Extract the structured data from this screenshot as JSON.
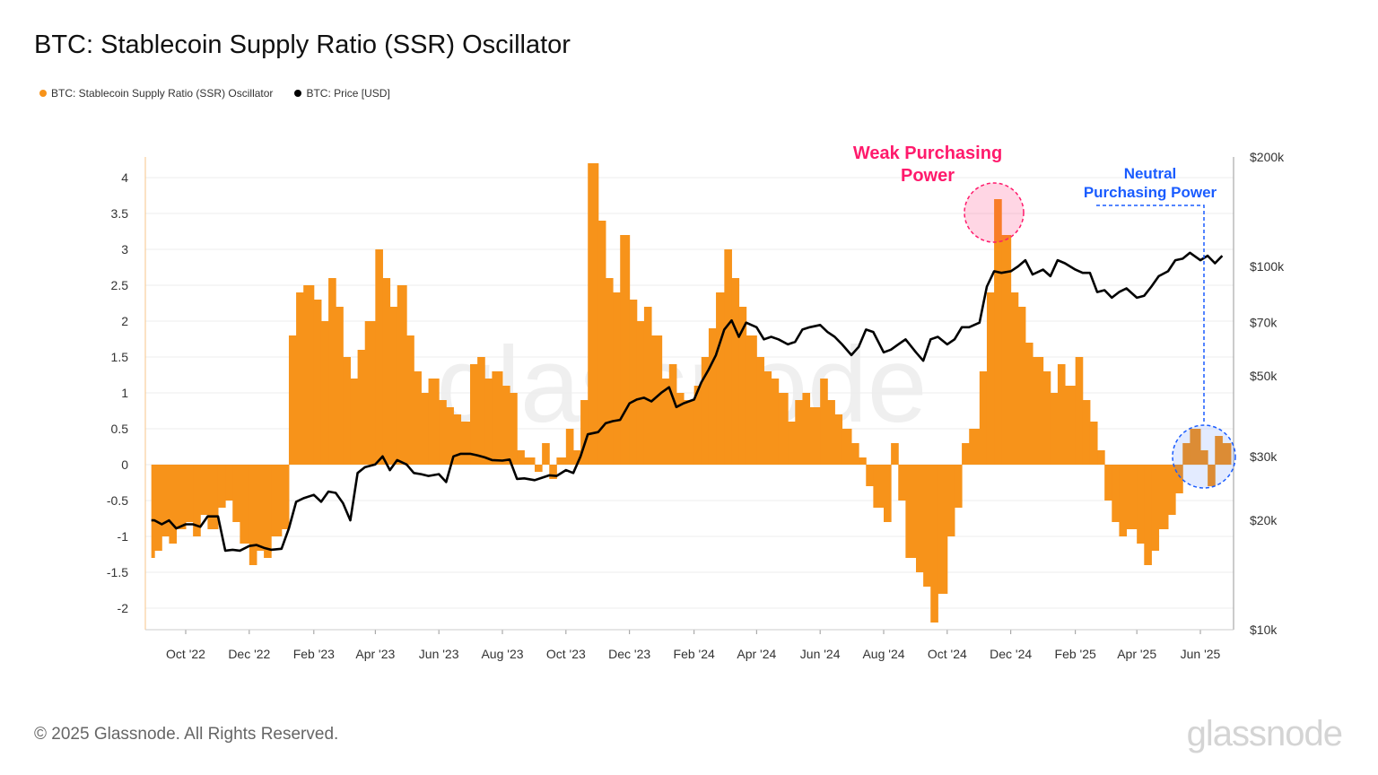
{
  "title": "BTC: Stablecoin Supply Ratio (SSR) Oscillator",
  "footer": "© 2025 Glassnode. All Rights Reserved.",
  "logo": "glassnode",
  "chart_data": {
    "type": "bar",
    "title": "BTC: Stablecoin Supply Ratio (SSR) Oscillator",
    "legend_position": "top-left",
    "grid": true,
    "colors": {
      "oscillator": "#f7931a",
      "price": "#000000",
      "weak": "#ff1a6c",
      "neutral": "#1a5cff"
    },
    "x_ticks": [
      "Oct '22",
      "Dec '22",
      "Feb '23",
      "Apr '23",
      "Jun '23",
      "Aug '23",
      "Oct '23",
      "Dec '23",
      "Feb '24",
      "Apr '24",
      "Jun '24",
      "Aug '24",
      "Oct '24",
      "Dec '24",
      "Feb '25",
      "Apr '25",
      "Jun '25"
    ],
    "y_left": {
      "ticks": [
        "4",
        "3.5",
        "3",
        "2.5",
        "2",
        "1.5",
        "1",
        "0.5",
        "0",
        "-0.5",
        "-1",
        "-1.5",
        "-2"
      ],
      "range": [
        -2.3,
        4.3
      ]
    },
    "y_right": {
      "scale": "log",
      "ticks": [
        "$200k",
        "$100k",
        "$70k",
        "$50k",
        "$30k",
        "$20k",
        "$10k"
      ],
      "range": [
        10000,
        200000
      ]
    },
    "annotations": [
      {
        "text_lines": [
          "Weak Purchasing",
          "Power"
        ],
        "date": "2024-11-13",
        "type": "circle"
      },
      {
        "text_lines": [
          "Neutral",
          "Purchasing Power"
        ],
        "date": "2025-06-01",
        "type": "circle"
      }
    ],
    "series": [
      {
        "name": "BTC: Stablecoin Supply Ratio (SSR) Oscillator",
        "type": "bar",
        "axis": "left"
      },
      {
        "name": "BTC: Price [USD]",
        "type": "line",
        "axis": "right"
      }
    ],
    "dates": [
      "2022-08-29",
      "2022-09-01",
      "2022-09-08",
      "2022-09-15",
      "2022-09-22",
      "2022-10-01",
      "2022-10-08",
      "2022-10-15",
      "2022-10-22",
      "2022-11-01",
      "2022-11-08",
      "2022-11-15",
      "2022-11-22",
      "2022-12-01",
      "2022-12-08",
      "2022-12-15",
      "2022-12-22",
      "2023-01-01",
      "2023-01-08",
      "2023-01-15",
      "2023-01-22",
      "2023-02-01",
      "2023-02-08",
      "2023-02-15",
      "2023-02-22",
      "2023-03-01",
      "2023-03-08",
      "2023-03-15",
      "2023-03-22",
      "2023-04-01",
      "2023-04-08",
      "2023-04-15",
      "2023-04-22",
      "2023-05-01",
      "2023-05-08",
      "2023-05-15",
      "2023-05-22",
      "2023-06-01",
      "2023-06-08",
      "2023-06-15",
      "2023-06-22",
      "2023-07-01",
      "2023-07-08",
      "2023-07-15",
      "2023-07-22",
      "2023-08-01",
      "2023-08-08",
      "2023-08-15",
      "2023-08-22",
      "2023-09-01",
      "2023-09-08",
      "2023-09-15",
      "2023-09-22",
      "2023-10-01",
      "2023-10-08",
      "2023-10-15",
      "2023-10-22",
      "2023-11-01",
      "2023-11-08",
      "2023-11-15",
      "2023-11-22",
      "2023-12-01",
      "2023-12-08",
      "2023-12-15",
      "2023-12-22",
      "2024-01-01",
      "2024-01-08",
      "2024-01-15",
      "2024-01-22",
      "2024-02-01",
      "2024-02-08",
      "2024-02-15",
      "2024-02-22",
      "2024-03-01",
      "2024-03-08",
      "2024-03-15",
      "2024-03-22",
      "2024-04-01",
      "2024-04-08",
      "2024-04-15",
      "2024-04-22",
      "2024-05-01",
      "2024-05-08",
      "2024-05-15",
      "2024-05-22",
      "2024-06-01",
      "2024-06-08",
      "2024-06-15",
      "2024-06-22",
      "2024-07-01",
      "2024-07-08",
      "2024-07-15",
      "2024-07-22",
      "2024-08-01",
      "2024-08-08",
      "2024-08-15",
      "2024-08-22",
      "2024-09-01",
      "2024-09-08",
      "2024-09-15",
      "2024-09-22",
      "2024-10-01",
      "2024-10-08",
      "2024-10-15",
      "2024-10-22",
      "2024-11-01",
      "2024-11-08",
      "2024-11-15",
      "2024-11-22",
      "2024-12-01",
      "2024-12-08",
      "2024-12-15",
      "2024-12-22",
      "2025-01-01",
      "2025-01-08",
      "2025-01-15",
      "2025-01-22",
      "2025-02-01",
      "2025-02-08",
      "2025-02-15",
      "2025-02-22",
      "2025-03-01",
      "2025-03-08",
      "2025-03-15",
      "2025-03-22",
      "2025-04-01",
      "2025-04-08",
      "2025-04-15",
      "2025-04-22",
      "2025-05-01",
      "2025-05-08",
      "2025-05-15",
      "2025-05-22",
      "2025-06-01",
      "2025-06-08",
      "2025-06-15",
      "2025-06-22"
    ],
    "oscillator": [
      -1.3,
      -1.2,
      -1.0,
      -1.1,
      -0.9,
      -0.8,
      -1.0,
      -0.7,
      -0.9,
      -0.6,
      -0.5,
      -0.8,
      -1.1,
      -1.4,
      -1.2,
      -1.3,
      -1.0,
      -0.9,
      1.8,
      2.4,
      2.5,
      2.3,
      2.0,
      2.6,
      2.2,
      1.5,
      1.2,
      1.6,
      2.0,
      3.0,
      2.6,
      2.2,
      2.5,
      1.8,
      1.3,
      1.0,
      1.2,
      0.9,
      0.8,
      0.7,
      0.6,
      1.4,
      1.5,
      1.2,
      1.3,
      1.1,
      1.0,
      0.2,
      0.1,
      -0.1,
      0.3,
      -0.2,
      0.1,
      0.5,
      0.2,
      0.9,
      4.2,
      3.4,
      2.6,
      2.4,
      3.2,
      2.3,
      2.0,
      2.2,
      1.8,
      1.2,
      1.4,
      1.0,
      0.9,
      1.1,
      1.5,
      1.9,
      2.4,
      3.0,
      2.6,
      2.2,
      1.8,
      1.5,
      1.3,
      1.2,
      1.0,
      0.6,
      0.9,
      1.0,
      0.8,
      1.2,
      0.9,
      0.7,
      0.5,
      0.3,
      0.1,
      -0.3,
      -0.6,
      -0.8,
      0.3,
      -0.5,
      -1.3,
      -1.5,
      -1.7,
      -2.2,
      -1.8,
      -1.0,
      -0.6,
      0.3,
      0.5,
      1.3,
      2.4,
      3.7,
      3.2,
      2.4,
      2.2,
      1.7,
      1.5,
      1.3,
      1.0,
      1.4,
      1.1,
      1.5,
      0.9,
      0.6,
      0.2,
      -0.5,
      -0.8,
      -1.0,
      -0.9,
      -1.1,
      -1.4,
      -1.2,
      -0.9,
      -0.7,
      -0.4,
      0.3,
      0.5,
      0.2,
      -0.3,
      0.4,
      0.3
    ],
    "price": [
      20000,
      20000,
      19500,
      20000,
      19000,
      19500,
      19500,
      19200,
      20500,
      20500,
      16500,
      16600,
      16500,
      17000,
      17100,
      16800,
      16600,
      16700,
      19000,
      22500,
      23000,
      23500,
      22500,
      24000,
      23800,
      22300,
      20000,
      27000,
      28000,
      28500,
      30000,
      27500,
      29300,
      28500,
      27000,
      26800,
      26500,
      26800,
      25500,
      30000,
      30500,
      30500,
      30200,
      29800,
      29300,
      29200,
      29400,
      26000,
      26100,
      25800,
      26200,
      26600,
      26500,
      27500,
      27000,
      30000,
      34500,
      35000,
      37000,
      37500,
      37800,
      42000,
      43000,
      43500,
      42500,
      45000,
      46500,
      41000,
      42000,
      43000,
      48000,
      52000,
      57000,
      67000,
      71000,
      64000,
      70000,
      68000,
      63000,
      64000,
      63000,
      61000,
      62000,
      67000,
      68000,
      69000,
      66000,
      64000,
      61000,
      57000,
      60000,
      67000,
      66000,
      58000,
      59000,
      61000,
      63000,
      58000,
      55000,
      63000,
      64000,
      61000,
      63000,
      68000,
      68000,
      70000,
      88000,
      97000,
      96000,
      97000,
      100000,
      104000,
      95000,
      98000,
      94000,
      104000,
      102000,
      98000,
      96000,
      96000,
      85000,
      86000,
      82000,
      85000,
      87000,
      82000,
      83000,
      88000,
      94000,
      97000,
      104000,
      105000,
      109000,
      104000,
      107000,
      102000,
      107000
    ]
  }
}
